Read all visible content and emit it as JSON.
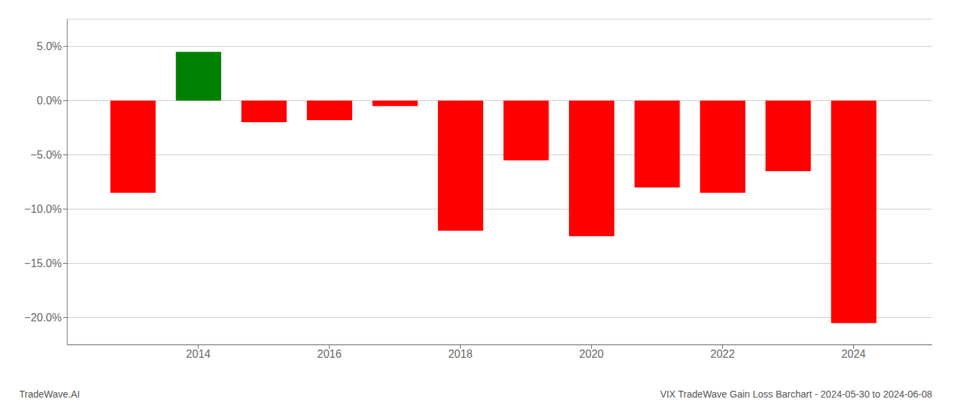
{
  "chart_data": {
    "type": "bar",
    "title": "VIX TradeWave Gain Loss Barchart - 2024-05-30 to 2024-06-08",
    "annotations": [
      "TradeWave.AI"
    ],
    "x": [
      2013,
      2014,
      2015,
      2016,
      2017,
      2018,
      2019,
      2020,
      2021,
      2022,
      2023,
      2024
    ],
    "values": [
      -0.085,
      0.045,
      -0.02,
      -0.018,
      -0.005,
      -0.12,
      -0.055,
      -0.125,
      -0.08,
      -0.085,
      -0.065,
      -0.205
    ],
    "colors": [
      "#ff0000",
      "#008000",
      "#ff0000",
      "#ff0000",
      "#ff0000",
      "#ff0000",
      "#ff0000",
      "#ff0000",
      "#ff0000",
      "#ff0000",
      "#ff0000",
      "#ff0000"
    ],
    "xlim": [
      2012.0,
      2025.2
    ],
    "xticks": [
      2014,
      2016,
      2018,
      2020,
      2022,
      2024
    ],
    "ylim": [
      -0.225,
      0.075
    ],
    "yticks": [
      {
        "value": 0.05,
        "label": "5.0%"
      },
      {
        "value": 0.0,
        "label": "0.0%"
      },
      {
        "value": -0.05,
        "label": "−5.0%"
      },
      {
        "value": -0.1,
        "label": "−10.0%"
      },
      {
        "value": -0.15,
        "label": "−15.0%"
      },
      {
        "value": -0.2,
        "label": "−20.0%"
      }
    ],
    "grid": true
  }
}
